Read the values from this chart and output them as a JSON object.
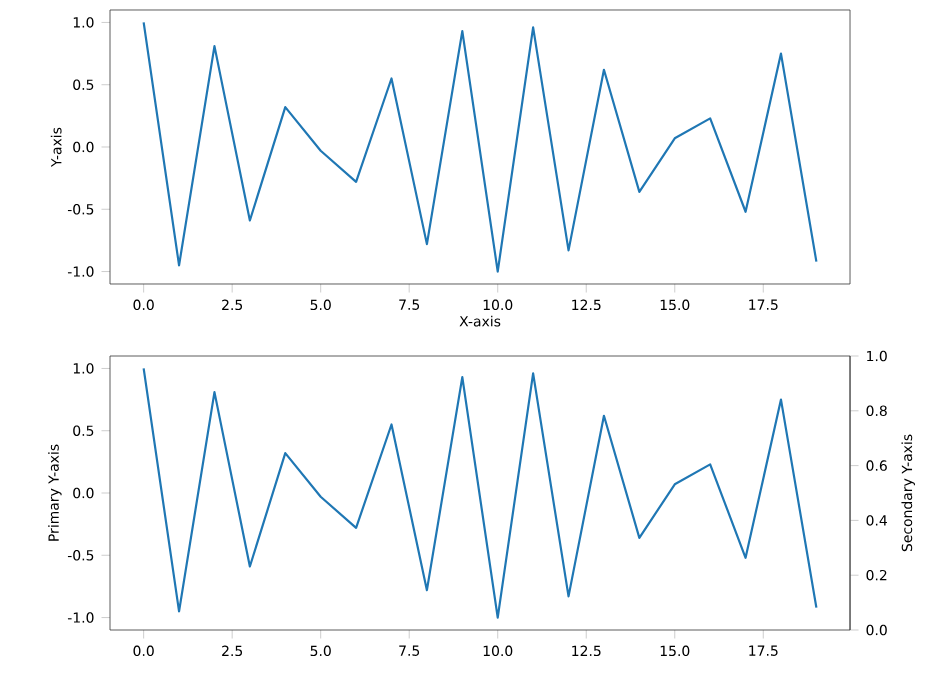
{
  "chart_data": [
    {
      "type": "line",
      "xlabel": "X-axis",
      "ylabel": "Y-axis",
      "x": [
        0,
        1,
        2,
        3,
        4,
        5,
        6,
        7,
        8,
        9,
        10,
        11,
        12,
        13,
        14,
        15,
        16,
        17,
        18,
        19
      ],
      "values": [
        1.0,
        -0.95,
        0.81,
        -0.59,
        0.32,
        -0.03,
        -0.28,
        0.55,
        -0.78,
        0.93,
        -1.0,
        0.96,
        -0.83,
        0.62,
        -0.36,
        0.07,
        0.23,
        -0.52,
        0.75,
        -0.92
      ],
      "color": "#1f77b4",
      "xlim": [
        -0.95,
        19.95
      ],
      "ylim": [
        -1.1,
        1.1
      ],
      "xticks": [
        {
          "value": 0,
          "label": "0.0"
        },
        {
          "value": 2.5,
          "label": "2.5"
        },
        {
          "value": 5,
          "label": "5.0"
        },
        {
          "value": 7.5,
          "label": "7.5"
        },
        {
          "value": 10,
          "label": "10.0"
        },
        {
          "value": 12.5,
          "label": "12.5"
        },
        {
          "value": 15,
          "label": "15.0"
        },
        {
          "value": 17.5,
          "label": "17.5"
        }
      ],
      "yticks": [
        {
          "value": -1,
          "label": "-1.0"
        },
        {
          "value": -0.5,
          "label": "-0.5"
        },
        {
          "value": 0,
          "label": "0.0"
        },
        {
          "value": 0.5,
          "label": "0.5"
        },
        {
          "value": 1,
          "label": "1.0"
        }
      ]
    },
    {
      "type": "line",
      "ylabel": "Primary Y-axis",
      "y2label": "Secondary Y-axis",
      "x": [
        0,
        1,
        2,
        3,
        4,
        5,
        6,
        7,
        8,
        9,
        10,
        11,
        12,
        13,
        14,
        15,
        16,
        17,
        18,
        19
      ],
      "values": [
        1.0,
        -0.95,
        0.81,
        -0.59,
        0.32,
        -0.03,
        -0.28,
        0.55,
        -0.78,
        0.93,
        -1.0,
        0.96,
        -0.83,
        0.62,
        -0.36,
        0.07,
        0.23,
        -0.52,
        0.75,
        -0.92
      ],
      "color": "#1f77b4",
      "xlim": [
        -0.95,
        19.95
      ],
      "ylim": [
        -1.1,
        1.1
      ],
      "xticks": [
        {
          "value": 0,
          "label": "0.0"
        },
        {
          "value": 2.5,
          "label": "2.5"
        },
        {
          "value": 5,
          "label": "5.0"
        },
        {
          "value": 7.5,
          "label": "7.5"
        },
        {
          "value": 10,
          "label": "10.0"
        },
        {
          "value": 12.5,
          "label": "12.5"
        },
        {
          "value": 15,
          "label": "15.0"
        },
        {
          "value": 17.5,
          "label": "17.5"
        }
      ],
      "yticks": [
        {
          "value": -1,
          "label": "-1.0"
        },
        {
          "value": -0.5,
          "label": "-0.5"
        },
        {
          "value": 0,
          "label": "0.0"
        },
        {
          "value": 0.5,
          "label": "0.5"
        },
        {
          "value": 1,
          "label": "1.0"
        }
      ],
      "y2lim": [
        0,
        1
      ],
      "y2ticks": [
        {
          "value": 0,
          "label": "0.0"
        },
        {
          "value": 0.2,
          "label": "0.2"
        },
        {
          "value": 0.4,
          "label": "0.4"
        },
        {
          "value": 0.6,
          "label": "0.6"
        },
        {
          "value": 0.8,
          "label": "0.8"
        },
        {
          "value": 1,
          "label": "1.0"
        }
      ]
    }
  ]
}
